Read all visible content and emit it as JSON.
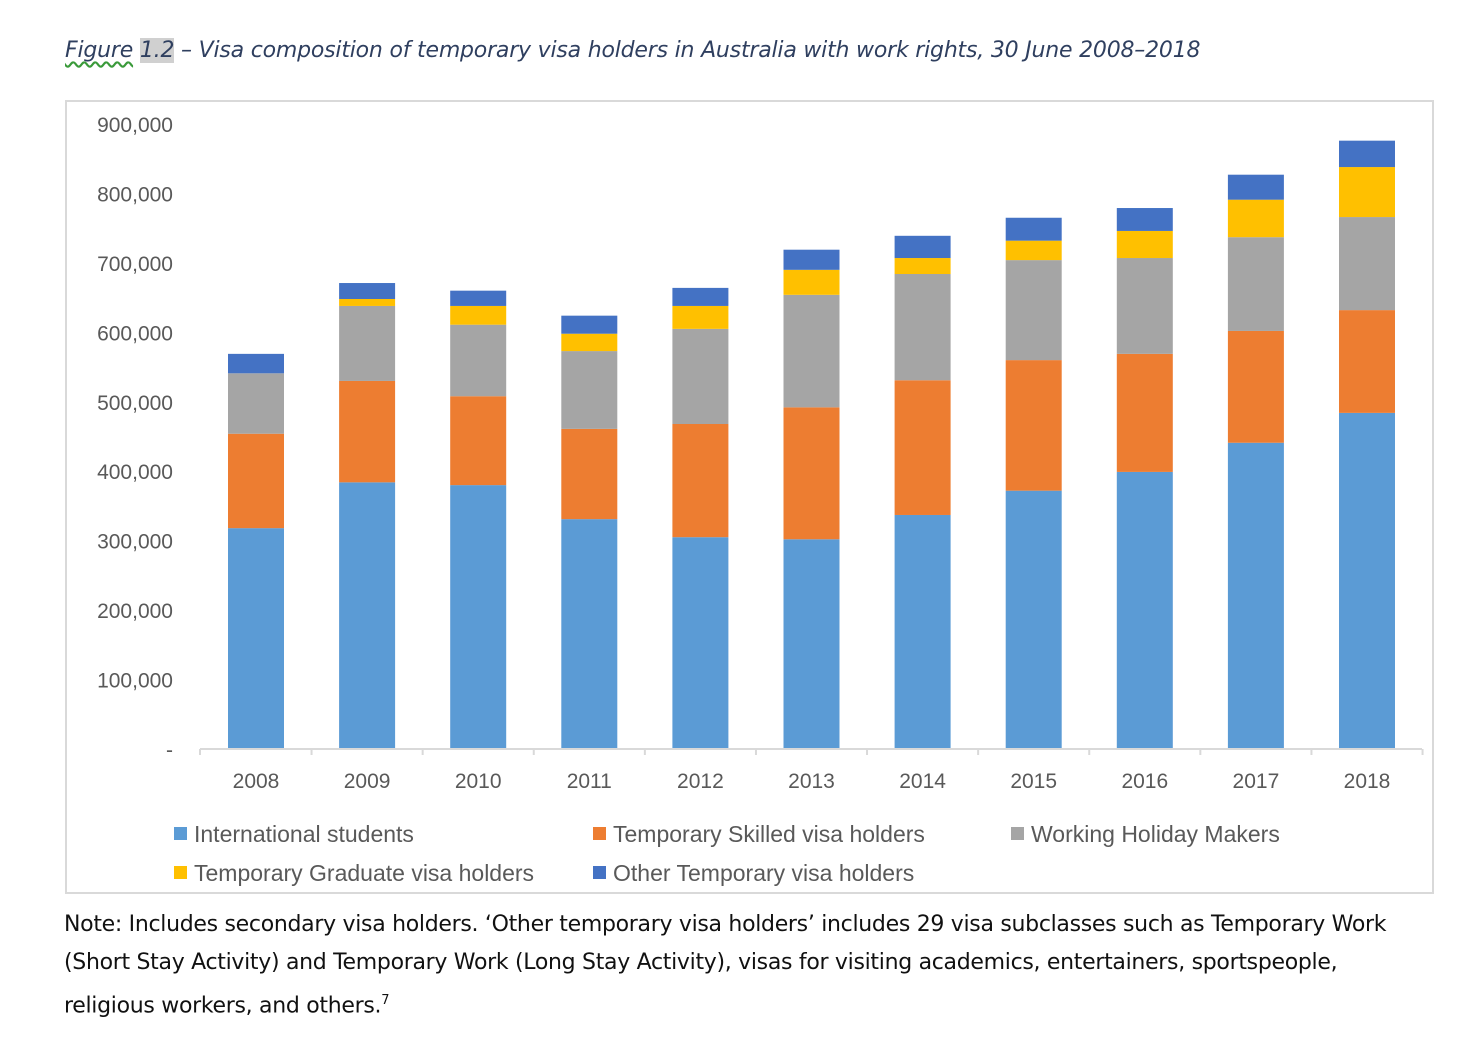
{
  "title": {
    "prefix": "Figure",
    "number": "1.2",
    "text": " – Visa composition of temporary visa holders in Australia with work rights, 30 June 2008–2018"
  },
  "note": {
    "text": "Note: Includes secondary visa holders. ‘Other temporary visa holders’ includes 29 visa subclasses such as Temporary Work (Short Stay Activity) and Temporary Work (Long Stay Activity), visas for visiting academics, entertainers, sportspeople, religious workers, and others.",
    "footnote": "7"
  },
  "chart_data": {
    "type": "bar",
    "stacked": true,
    "categories": [
      "2008",
      "2009",
      "2010",
      "2011",
      "2012",
      "2013",
      "2014",
      "2015",
      "2016",
      "2017",
      "2018"
    ],
    "ylim": [
      0,
      900000
    ],
    "yticks": [
      "-",
      "100,000",
      "200,000",
      "300,000",
      "400,000",
      "500,000",
      "600,000",
      "700,000",
      "800,000",
      "900,000"
    ],
    "grid": false,
    "legend_position": "bottom",
    "series": [
      {
        "name": "International students",
        "color": "#5B9BD5",
        "values": [
          318000,
          384000,
          380000,
          331000,
          305000,
          302000,
          337000,
          372000,
          399000,
          441000,
          484000
        ]
      },
      {
        "name": "Temporary Skilled visa holders",
        "color": "#ED7D31",
        "values": [
          136000,
          146000,
          128000,
          130000,
          163000,
          190000,
          194000,
          188000,
          170000,
          161000,
          148000
        ]
      },
      {
        "name": "Working Holiday Makers",
        "color": "#A5A5A5",
        "values": [
          87000,
          108000,
          103000,
          112000,
          137000,
          162000,
          153000,
          144000,
          138000,
          135000,
          134000
        ]
      },
      {
        "name": "Temporary Graduate visa holders",
        "color": "#FFC000",
        "values": [
          0,
          10000,
          27000,
          25000,
          33000,
          36000,
          23000,
          28000,
          39000,
          54000,
          72000
        ]
      },
      {
        "name": "Other Temporary visa holders",
        "color": "#4472C4",
        "values": [
          28000,
          23000,
          22000,
          26000,
          26000,
          29000,
          32000,
          33000,
          33000,
          36000,
          38000
        ]
      }
    ]
  }
}
